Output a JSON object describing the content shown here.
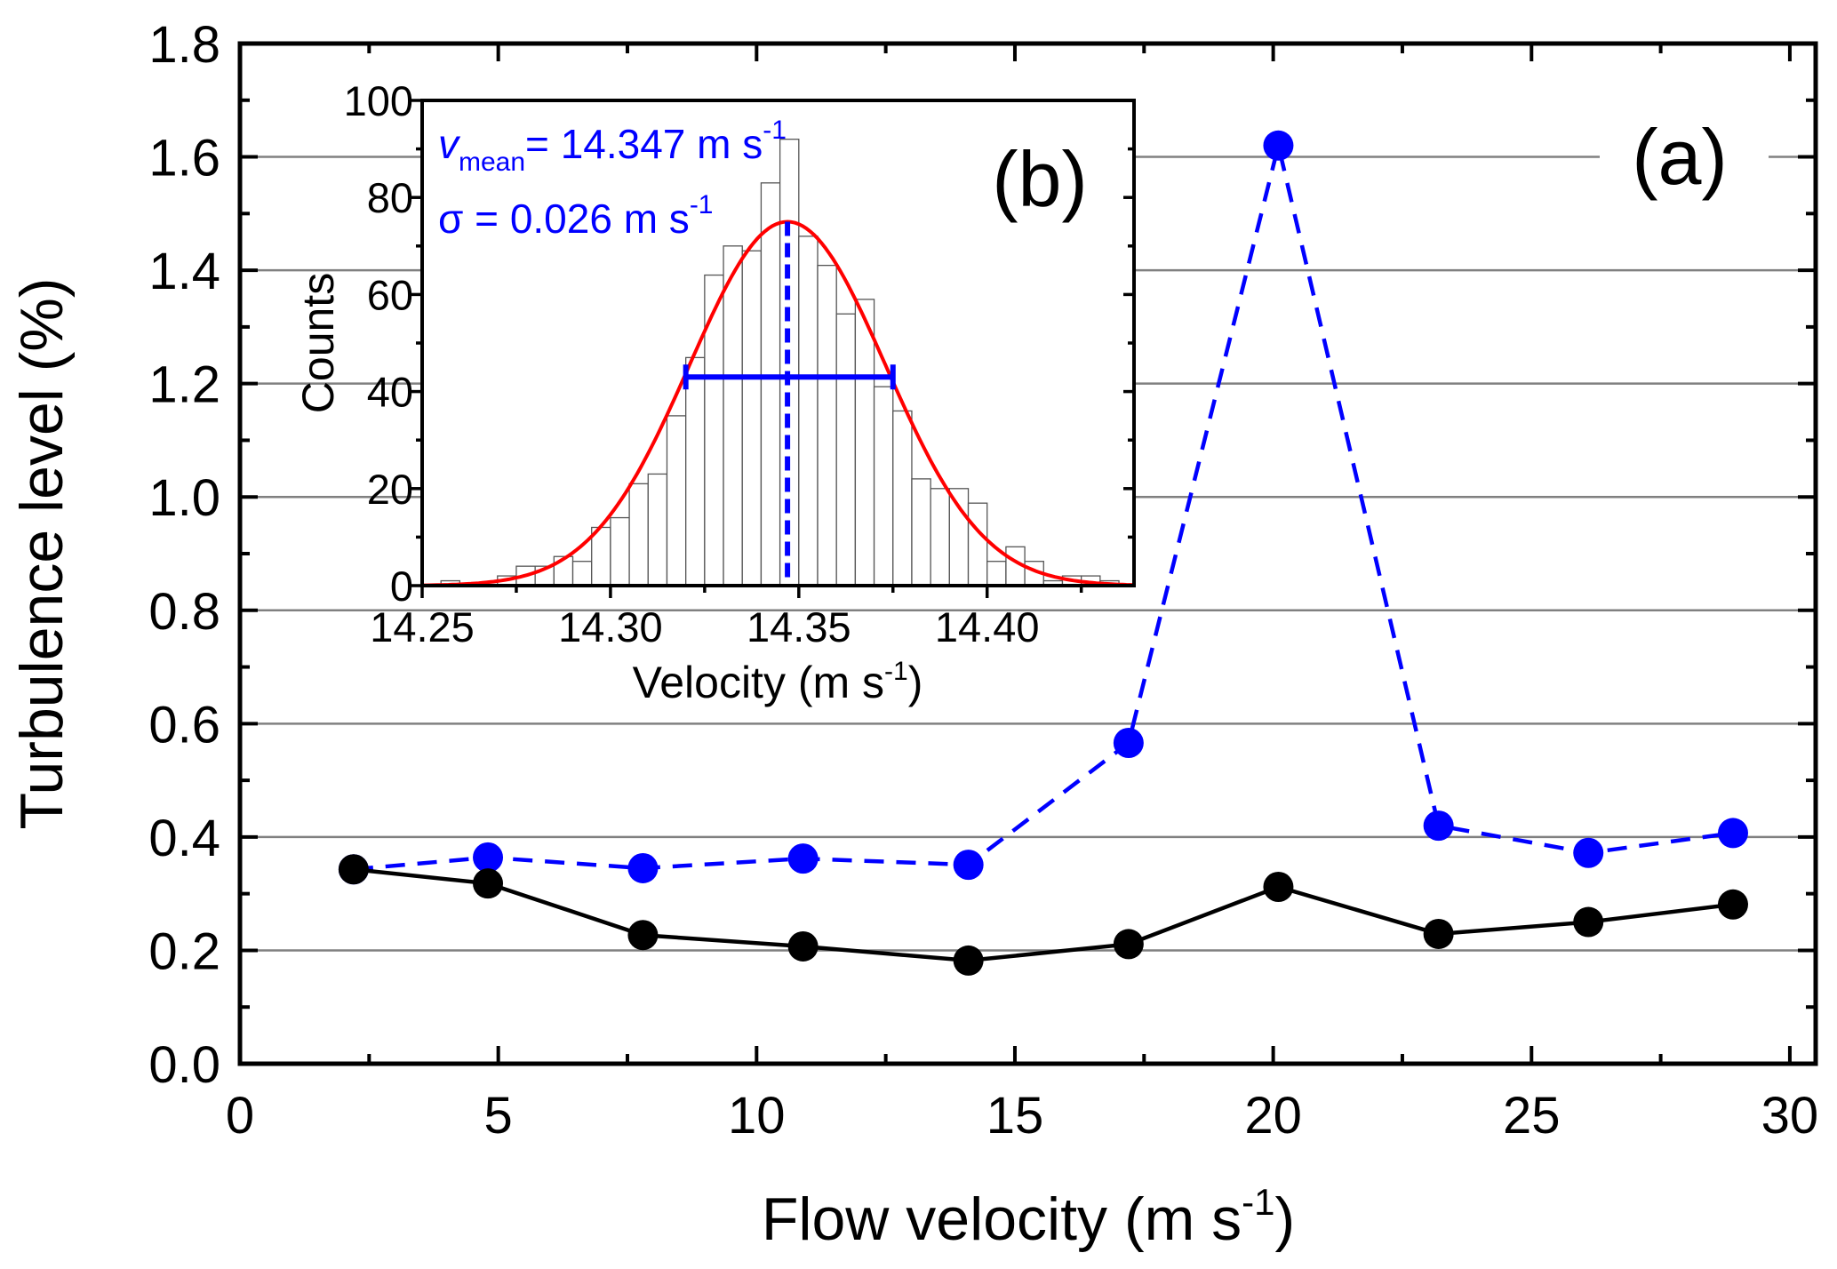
{
  "chart_data": [
    {
      "panel_label": "(a)",
      "type": "line",
      "xlabel": "Flow velocity (m s",
      "xlabel_sup": "-1",
      "xlabel_end": ")",
      "ylabel": "Turbulence level (%)",
      "xlim": [
        0,
        30.5
      ],
      "ylim": [
        0,
        1.8
      ],
      "xticks": [
        0,
        5,
        10,
        15,
        20,
        25,
        30
      ],
      "yticks": [
        "0.0",
        "0.2",
        "0.4",
        "0.6",
        "0.8",
        "1.0",
        "1.2",
        "1.4",
        "1.6",
        "1.8"
      ],
      "grid": "horizontal",
      "series": [
        {
          "color": "#000000",
          "line": "solid",
          "marker": "circle",
          "x": [
            2.2,
            4.8,
            7.8,
            10.9,
            14.1,
            17.2,
            20.1,
            23.2,
            26.1,
            28.9
          ],
          "y": [
            0.343,
            0.318,
            0.227,
            0.207,
            0.182,
            0.211,
            0.312,
            0.229,
            0.25,
            0.281
          ]
        },
        {
          "color": "#0000FF",
          "line": "dashed",
          "marker": "circle",
          "x": [
            2.2,
            4.8,
            7.8,
            10.9,
            14.1,
            17.2,
            20.1,
            23.2,
            26.1,
            28.9
          ],
          "y": [
            0.343,
            0.364,
            0.345,
            0.362,
            0.351,
            0.566,
            1.62,
            0.42,
            0.372,
            0.407
          ]
        }
      ]
    },
    {
      "panel_label": "(b)",
      "type": "bar",
      "xlabel": "Velocity (m s",
      "xlabel_sup": "-1",
      "xlabel_end": ")",
      "ylabel": "Counts",
      "xlim": [
        14.25,
        14.439
      ],
      "ylim": [
        0,
        100
      ],
      "xticks": [
        "14.25",
        "14.30",
        "14.35",
        "14.40"
      ],
      "yticks": [
        0,
        20,
        40,
        60,
        80,
        100
      ],
      "bin_start": 14.25,
      "bin_width": 0.005,
      "counts": [
        0,
        1,
        0,
        0,
        2,
        4,
        4,
        6,
        5,
        12,
        14,
        21,
        23,
        35,
        47,
        64,
        70,
        69,
        83,
        92,
        72,
        66,
        56,
        59,
        41,
        36,
        22,
        20,
        20,
        17,
        5,
        8,
        5,
        1,
        2,
        2,
        1
      ],
      "fit": {
        "type": "gaussian",
        "color": "#FF0000",
        "mean": 14.347,
        "sigma": 0.026,
        "peak": 75
      },
      "mean_line": {
        "color": "#0000FF",
        "x": 14.347
      },
      "fwhm_bar": {
        "color": "#0000FF",
        "x": [
          14.32,
          14.375
        ],
        "y": 43
      },
      "annotations": {
        "mean_symbol": "v",
        "mean_sub": "mean",
        "mean_text": "= 14.347 m s",
        "mean_sup": "-1",
        "sigma_text": "σ = 0.026 m s",
        "sigma_sup": "-1"
      }
    }
  ]
}
